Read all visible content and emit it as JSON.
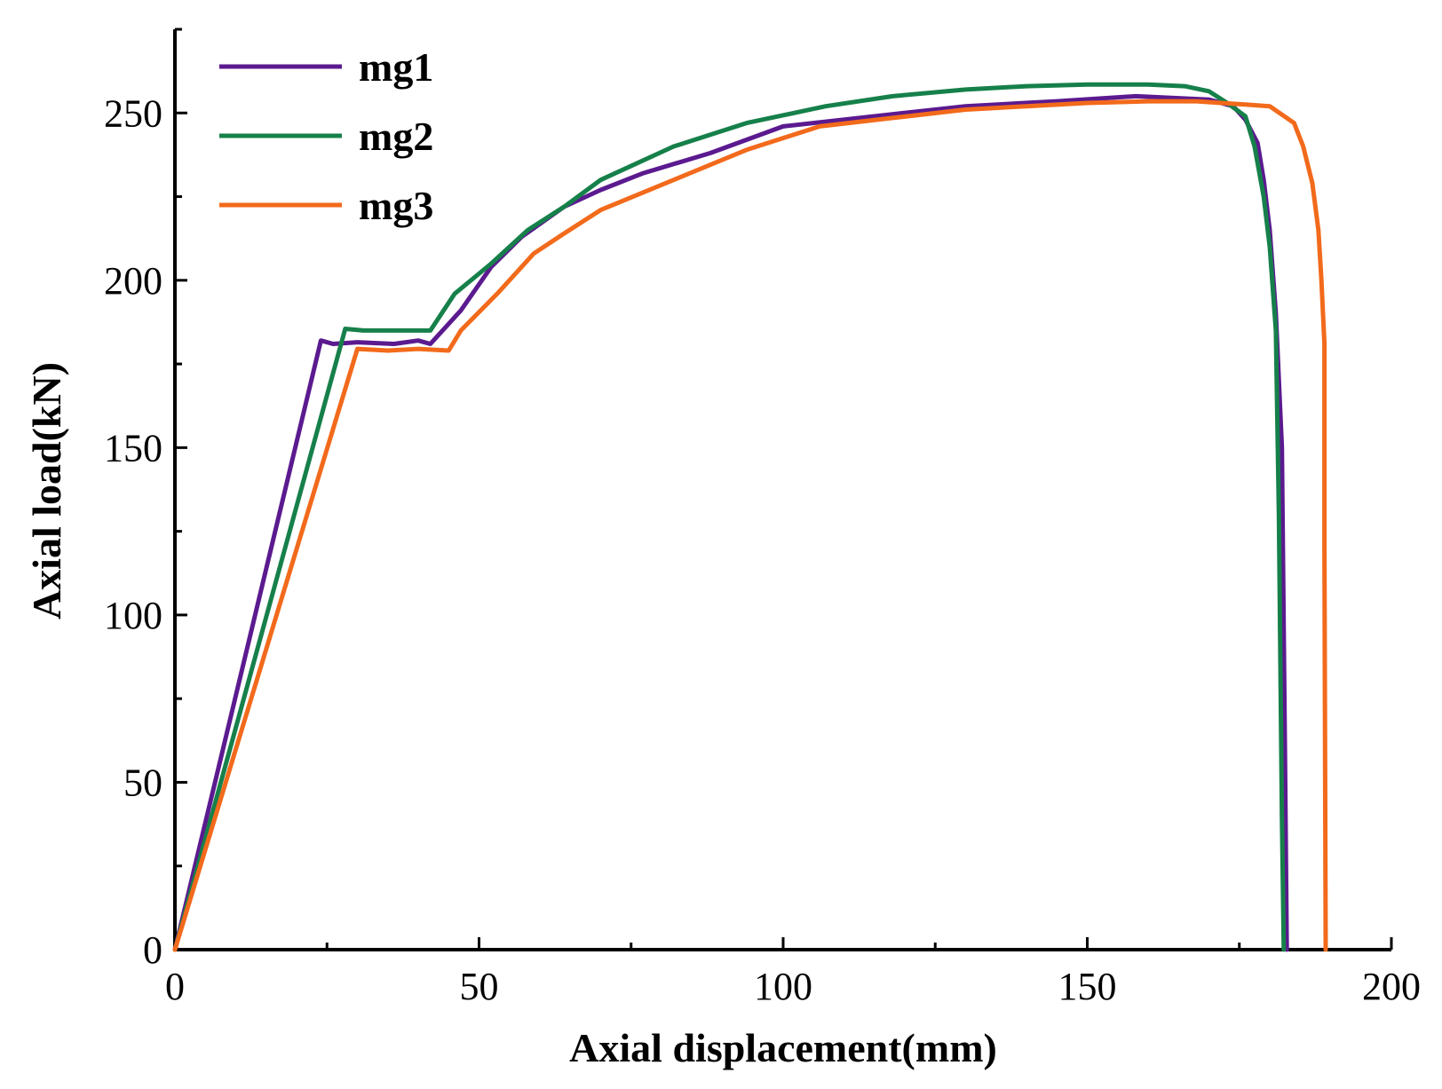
{
  "chart_data": {
    "type": "line",
    "title": "",
    "xlabel": "Axial displacement(mm)",
    "ylabel": "Axial load(kN)",
    "xlim": [
      0,
      200
    ],
    "ylim": [
      0,
      275
    ],
    "x_ticks": [
      0,
      50,
      100,
      150,
      200
    ],
    "y_ticks": [
      0,
      50,
      100,
      150,
      200,
      250
    ],
    "x_tick_labels": [
      "0",
      "50",
      "100",
      "150",
      "200"
    ],
    "y_tick_labels": [
      "0",
      "50",
      "100",
      "150",
      "200",
      "250"
    ],
    "grid": false,
    "legend_position": "top-left",
    "series": [
      {
        "name": "mg1",
        "color": "#5b1a8f",
        "points": [
          [
            0,
            0
          ],
          [
            24,
            182
          ],
          [
            26,
            181
          ],
          [
            30,
            181.5
          ],
          [
            36,
            181
          ],
          [
            40,
            182
          ],
          [
            42,
            181
          ],
          [
            47,
            191
          ],
          [
            52,
            204
          ],
          [
            57,
            213
          ],
          [
            64,
            222
          ],
          [
            70,
            227
          ],
          [
            77,
            232
          ],
          [
            88,
            238
          ],
          [
            100,
            246
          ],
          [
            115,
            249
          ],
          [
            130,
            252
          ],
          [
            145,
            253.5
          ],
          [
            158,
            255
          ],
          [
            170,
            254
          ],
          [
            174,
            252
          ],
          [
            176,
            248
          ],
          [
            178,
            241
          ],
          [
            179,
            230
          ],
          [
            180,
            215
          ],
          [
            181,
            190
          ],
          [
            182,
            150
          ],
          [
            182.5,
            60
          ],
          [
            182.8,
            0
          ]
        ]
      },
      {
        "name": "mg2",
        "color": "#16804a",
        "points": [
          [
            0,
            0
          ],
          [
            28,
            185.5
          ],
          [
            31,
            185
          ],
          [
            35,
            185
          ],
          [
            42,
            185
          ],
          [
            46,
            196
          ],
          [
            52,
            205
          ],
          [
            58,
            215
          ],
          [
            64,
            222
          ],
          [
            70,
            230
          ],
          [
            82,
            240
          ],
          [
            94,
            247
          ],
          [
            107,
            252
          ],
          [
            118,
            255
          ],
          [
            130,
            257
          ],
          [
            140,
            258
          ],
          [
            150,
            258.5
          ],
          [
            160,
            258.5
          ],
          [
            166,
            258
          ],
          [
            170,
            256.5
          ],
          [
            173,
            253
          ],
          [
            176,
            249
          ],
          [
            177.5,
            240
          ],
          [
            179,
            225
          ],
          [
            180,
            210
          ],
          [
            181,
            185
          ],
          [
            181.5,
            130
          ],
          [
            182,
            40
          ],
          [
            182.3,
            0
          ]
        ]
      },
      {
        "name": "mg3",
        "color": "#f26a1b",
        "points": [
          [
            0,
            0
          ],
          [
            30,
            179.5
          ],
          [
            35,
            179
          ],
          [
            40,
            179.5
          ],
          [
            45,
            179
          ],
          [
            47,
            185
          ],
          [
            53,
            196
          ],
          [
            59,
            208
          ],
          [
            64,
            214
          ],
          [
            70,
            221
          ],
          [
            82,
            230
          ],
          [
            94,
            239
          ],
          [
            106,
            246
          ],
          [
            118,
            248.5
          ],
          [
            130,
            251
          ],
          [
            140,
            252
          ],
          [
            150,
            253
          ],
          [
            160,
            253.5
          ],
          [
            168,
            253.5
          ],
          [
            172,
            253
          ],
          [
            176,
            252.5
          ],
          [
            180,
            252
          ],
          [
            184,
            247
          ],
          [
            185.5,
            240
          ],
          [
            187,
            229
          ],
          [
            188,
            215
          ],
          [
            188.5,
            200
          ],
          [
            189,
            181
          ],
          [
            189,
            120
          ],
          [
            189.2,
            0
          ]
        ]
      }
    ]
  }
}
